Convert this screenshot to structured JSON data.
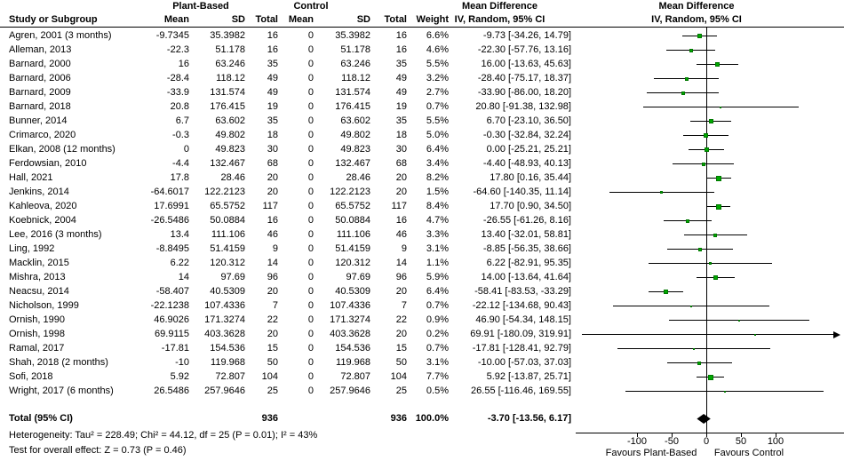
{
  "table": {
    "group1": "Plant-Based",
    "group2": "Control",
    "col_study": "Study or Subgroup",
    "col_mean1": "Mean",
    "col_sd1": "SD",
    "col_total1": "Total",
    "col_mean2": "Mean",
    "col_sd2": "SD",
    "col_total2": "Total",
    "col_weight": "Weight",
    "col_md_line1": "Mean Difference",
    "col_md_line2": "IV, Random, 95% CI"
  },
  "plot_header": {
    "line1": "Mean Difference",
    "line2": "IV, Random, 95% CI"
  },
  "chart_data": {
    "type": "scatter",
    "subtype": "forest-plot",
    "effect_measure": "Mean Difference IV, Random, 95% CI",
    "x_ticks": [
      -100,
      -50,
      0,
      50,
      100
    ],
    "x_axis_left_label": "Favours Plant-Based",
    "x_axis_right_label": "Favours Control",
    "marker_color": "#00a800",
    "studies": [
      {
        "label": "Agren, 2001 (3 months)",
        "mean1": "-9.7345",
        "sd1": "35.3982",
        "total1": "16",
        "mean2": "0",
        "sd2": "35.3982",
        "total2": "16",
        "weight": "6.6%",
        "ci_text": "-9.73 [-34.26, 14.79]",
        "md": -9.73,
        "lo": -34.26,
        "hi": 14.79
      },
      {
        "label": "Alleman, 2013",
        "mean1": "-22.3",
        "sd1": "51.178",
        "total1": "16",
        "mean2": "0",
        "sd2": "51.178",
        "total2": "16",
        "weight": "4.6%",
        "ci_text": "-22.30 [-57.76, 13.16]",
        "md": -22.3,
        "lo": -57.76,
        "hi": 13.16
      },
      {
        "label": "Barnard, 2000",
        "mean1": "16",
        "sd1": "63.246",
        "total1": "35",
        "mean2": "0",
        "sd2": "63.246",
        "total2": "35",
        "weight": "5.5%",
        "ci_text": "16.00 [-13.63, 45.63]",
        "md": 16.0,
        "lo": -13.63,
        "hi": 45.63
      },
      {
        "label": "Barnard, 2006",
        "mean1": "-28.4",
        "sd1": "118.12",
        "total1": "49",
        "mean2": "0",
        "sd2": "118.12",
        "total2": "49",
        "weight": "3.2%",
        "ci_text": "-28.40 [-75.17, 18.37]",
        "md": -28.4,
        "lo": -75.17,
        "hi": 18.37
      },
      {
        "label": "Barnard, 2009",
        "mean1": "-33.9",
        "sd1": "131.574",
        "total1": "49",
        "mean2": "0",
        "sd2": "131.574",
        "total2": "49",
        "weight": "2.7%",
        "ci_text": "-33.90 [-86.00, 18.20]",
        "md": -33.9,
        "lo": -86.0,
        "hi": 18.2
      },
      {
        "label": "Barnard, 2018",
        "mean1": "20.8",
        "sd1": "176.415",
        "total1": "19",
        "mean2": "0",
        "sd2": "176.415",
        "total2": "19",
        "weight": "0.7%",
        "ci_text": "20.80 [-91.38, 132.98]",
        "md": 20.8,
        "lo": -91.38,
        "hi": 132.98
      },
      {
        "label": "Bunner, 2014",
        "mean1": "6.7",
        "sd1": "63.602",
        "total1": "35",
        "mean2": "0",
        "sd2": "63.602",
        "total2": "35",
        "weight": "5.5%",
        "ci_text": "6.70 [-23.10, 36.50]",
        "md": 6.7,
        "lo": -23.1,
        "hi": 36.5
      },
      {
        "label": "Crimarco, 2020",
        "mean1": "-0.3",
        "sd1": "49.802",
        "total1": "18",
        "mean2": "0",
        "sd2": "49.802",
        "total2": "18",
        "weight": "5.0%",
        "ci_text": "-0.30 [-32.84, 32.24]",
        "md": -0.3,
        "lo": -32.84,
        "hi": 32.24
      },
      {
        "label": "Elkan, 2008 (12 months)",
        "mean1": "0",
        "sd1": "49.823",
        "total1": "30",
        "mean2": "0",
        "sd2": "49.823",
        "total2": "30",
        "weight": "6.4%",
        "ci_text": "0.00 [-25.21, 25.21]",
        "md": 0.0,
        "lo": -25.21,
        "hi": 25.21
      },
      {
        "label": "Ferdowsian, 2010",
        "mean1": "-4.4",
        "sd1": "132.467",
        "total1": "68",
        "mean2": "0",
        "sd2": "132.467",
        "total2": "68",
        "weight": "3.4%",
        "ci_text": "-4.40 [-48.93, 40.13]",
        "md": -4.4,
        "lo": -48.93,
        "hi": 40.13
      },
      {
        "label": "Hall, 2021",
        "mean1": "17.8",
        "sd1": "28.46",
        "total1": "20",
        "mean2": "0",
        "sd2": "28.46",
        "total2": "20",
        "weight": "8.2%",
        "ci_text": "17.80 [0.16, 35.44]",
        "md": 17.8,
        "lo": 0.16,
        "hi": 35.44
      },
      {
        "label": "Jenkins, 2014",
        "mean1": "-64.6017",
        "sd1": "122.2123",
        "total1": "20",
        "mean2": "0",
        "sd2": "122.2123",
        "total2": "20",
        "weight": "1.5%",
        "ci_text": "-64.60 [-140.35, 11.14]",
        "md": -64.6,
        "lo": -140.35,
        "hi": 11.14
      },
      {
        "label": "Kahleova, 2020",
        "mean1": "17.6991",
        "sd1": "65.5752",
        "total1": "117",
        "mean2": "0",
        "sd2": "65.5752",
        "total2": "117",
        "weight": "8.4%",
        "ci_text": "17.70 [0.90, 34.50]",
        "md": 17.7,
        "lo": 0.9,
        "hi": 34.5
      },
      {
        "label": "Koebnick, 2004",
        "mean1": "-26.5486",
        "sd1": "50.0884",
        "total1": "16",
        "mean2": "0",
        "sd2": "50.0884",
        "total2": "16",
        "weight": "4.7%",
        "ci_text": "-26.55 [-61.26, 8.16]",
        "md": -26.55,
        "lo": -61.26,
        "hi": 8.16
      },
      {
        "label": "Lee, 2016 (3 months)",
        "mean1": "13.4",
        "sd1": "111.106",
        "total1": "46",
        "mean2": "0",
        "sd2": "111.106",
        "total2": "46",
        "weight": "3.3%",
        "ci_text": "13.40 [-32.01, 58.81]",
        "md": 13.4,
        "lo": -32.01,
        "hi": 58.81
      },
      {
        "label": "Ling, 1992",
        "mean1": "-8.8495",
        "sd1": "51.4159",
        "total1": "9",
        "mean2": "0",
        "sd2": "51.4159",
        "total2": "9",
        "weight": "3.1%",
        "ci_text": "-8.85 [-56.35, 38.66]",
        "md": -8.85,
        "lo": -56.35,
        "hi": 38.66
      },
      {
        "label": "Macklin, 2015",
        "mean1": "6.22",
        "sd1": "120.312",
        "total1": "14",
        "mean2": "0",
        "sd2": "120.312",
        "total2": "14",
        "weight": "1.1%",
        "ci_text": "6.22 [-82.91, 95.35]",
        "md": 6.22,
        "lo": -82.91,
        "hi": 95.35
      },
      {
        "label": "Mishra, 2013",
        "mean1": "14",
        "sd1": "97.69",
        "total1": "96",
        "mean2": "0",
        "sd2": "97.69",
        "total2": "96",
        "weight": "5.9%",
        "ci_text": "14.00 [-13.64, 41.64]",
        "md": 14.0,
        "lo": -13.64,
        "hi": 41.64
      },
      {
        "label": "Neacsu, 2014",
        "mean1": "-58.407",
        "sd1": "40.5309",
        "total1": "20",
        "mean2": "0",
        "sd2": "40.5309",
        "total2": "20",
        "weight": "6.4%",
        "ci_text": "-58.41 [-83.53, -33.29]",
        "md": -58.41,
        "lo": -83.53,
        "hi": -33.29
      },
      {
        "label": "Nicholson, 1999",
        "mean1": "-22.1238",
        "sd1": "107.4336",
        "total1": "7",
        "mean2": "0",
        "sd2": "107.4336",
        "total2": "7",
        "weight": "0.7%",
        "ci_text": "-22.12 [-134.68, 90.43]",
        "md": -22.12,
        "lo": -134.68,
        "hi": 90.43
      },
      {
        "label": "Ornish, 1990",
        "mean1": "46.9026",
        "sd1": "171.3274",
        "total1": "22",
        "mean2": "0",
        "sd2": "171.3274",
        "total2": "22",
        "weight": "0.9%",
        "ci_text": "46.90 [-54.34, 148.15]",
        "md": 46.9,
        "lo": -54.34,
        "hi": 148.15
      },
      {
        "label": "Ornish, 1998",
        "mean1": "69.9115",
        "sd1": "403.3628",
        "total1": "20",
        "mean2": "0",
        "sd2": "403.3628",
        "total2": "20",
        "weight": "0.2%",
        "ci_text": "69.91 [-180.09, 319.91]",
        "md": 69.91,
        "lo": -180.09,
        "hi": 319.91
      },
      {
        "label": "Ramal, 2017",
        "mean1": "-17.81",
        "sd1": "154.536",
        "total1": "15",
        "mean2": "0",
        "sd2": "154.536",
        "total2": "15",
        "weight": "0.7%",
        "ci_text": "-17.81 [-128.41, 92.79]",
        "md": -17.81,
        "lo": -128.41,
        "hi": 92.79
      },
      {
        "label": "Shah, 2018 (2 months)",
        "mean1": "-10",
        "sd1": "119.968",
        "total1": "50",
        "mean2": "0",
        "sd2": "119.968",
        "total2": "50",
        "weight": "3.1%",
        "ci_text": "-10.00 [-57.03, 37.03]",
        "md": -10.0,
        "lo": -57.03,
        "hi": 37.03
      },
      {
        "label": "Sofi, 2018",
        "mean1": "5.92",
        "sd1": "72.807",
        "total1": "104",
        "mean2": "0",
        "sd2": "72.807",
        "total2": "104",
        "weight": "7.7%",
        "ci_text": "5.92 [-13.87, 25.71]",
        "md": 5.92,
        "lo": -13.87,
        "hi": 25.71
      },
      {
        "label": "Wright, 2017 (6 months)",
        "mean1": "26.5486",
        "sd1": "257.9646",
        "total1": "25",
        "mean2": "0",
        "sd2": "257.9646",
        "total2": "25",
        "weight": "0.5%",
        "ci_text": "26.55 [-116.46, 169.55]",
        "md": 26.55,
        "lo": -116.46,
        "hi": 169.55
      }
    ],
    "total": {
      "label": "Total (95% CI)",
      "total1": "936",
      "total2": "936",
      "weight": "100.0%",
      "ci_text": "-3.70 [-13.56, 6.17]",
      "md": -3.7,
      "lo": -13.56,
      "hi": 6.17
    }
  },
  "footer": {
    "heterogeneity": "Heterogeneity: Tau² = 228.49; Chi² = 44.12, df = 25 (P = 0.01); I² = 43%",
    "overall_effect": "Test for overall effect: Z = 0.73 (P = 0.46)"
  }
}
